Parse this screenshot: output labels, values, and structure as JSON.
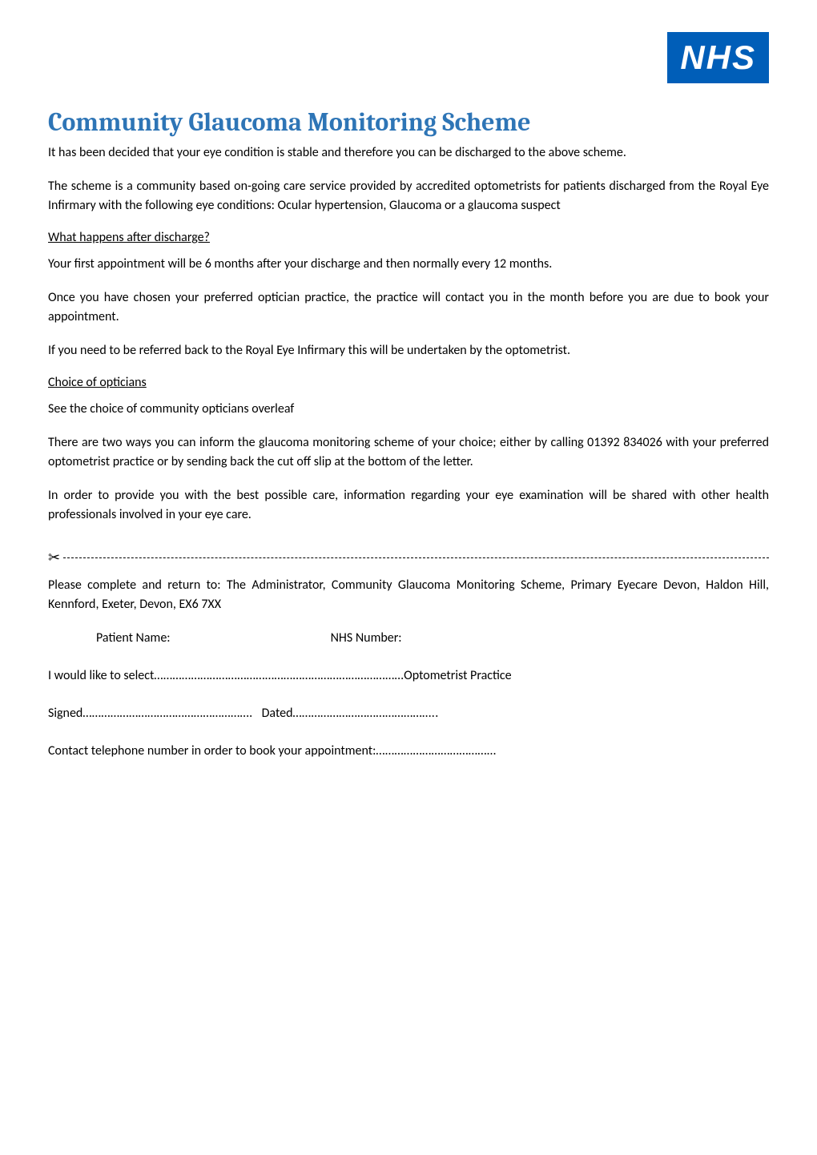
{
  "logo": {
    "text": "NHS",
    "bg_color": "#005eb8",
    "text_color": "#ffffff"
  },
  "title": "Community Glaucoma Monitoring Scheme",
  "title_color": "#2e75b6",
  "paragraphs": {
    "intro1": "It has been decided that your eye condition is stable and therefore you can be discharged to the above scheme.",
    "intro2": "The scheme is a community based on-going care service provided by accredited optometrists for patients discharged from the Royal Eye Infirmary with the following eye conditions: Ocular hypertension, Glaucoma or a glaucoma suspect",
    "discharge_heading": "What happens after discharge?",
    "discharge1": "Your first appointment will be 6 months after your discharge and then normally every 12 months.",
    "discharge2": "Once you have chosen your preferred optician practice, the practice will contact you in the month before you are due to book your appointment.",
    "discharge3": "If you need to be referred back to the Royal Eye Infirmary this will be undertaken by the optometrist.",
    "choice_heading": "Choice of opticians",
    "choice1": "See the choice of community opticians overleaf",
    "choice2": "There are two ways you can inform the glaucoma monitoring scheme of your choice; either by calling 01392 834026 with your preferred optometrist practice or by sending back the cut off slip at the bottom of the letter.",
    "choice3": "In order to provide you with the best possible care, information regarding your eye examination will be shared with other health professionals involved in your eye care."
  },
  "form": {
    "return_instructions": "Please complete and return to: The Administrator, Community Glaucoma Monitoring Scheme, Primary Eyecare Devon, Haldon Hill, Kennford, Exeter, Devon, EX6 7XX",
    "patient_name_label": "Patient Name:",
    "nhs_number_label": "NHS Number:",
    "select_prefix": "I would like to select",
    "select_dots": "………………………………………………………………………",
    "select_suffix": "Optometrist Practice",
    "signed_prefix": "Signed",
    "signed_dots": "……………………………………………….",
    "dated_prefix": "Dated",
    "dated_dots": "………………………………………..",
    "contact_prefix": "Contact telephone number in order to book your appointment:",
    "contact_dots": "…………………………………"
  },
  "scissors_icon": "✂"
}
